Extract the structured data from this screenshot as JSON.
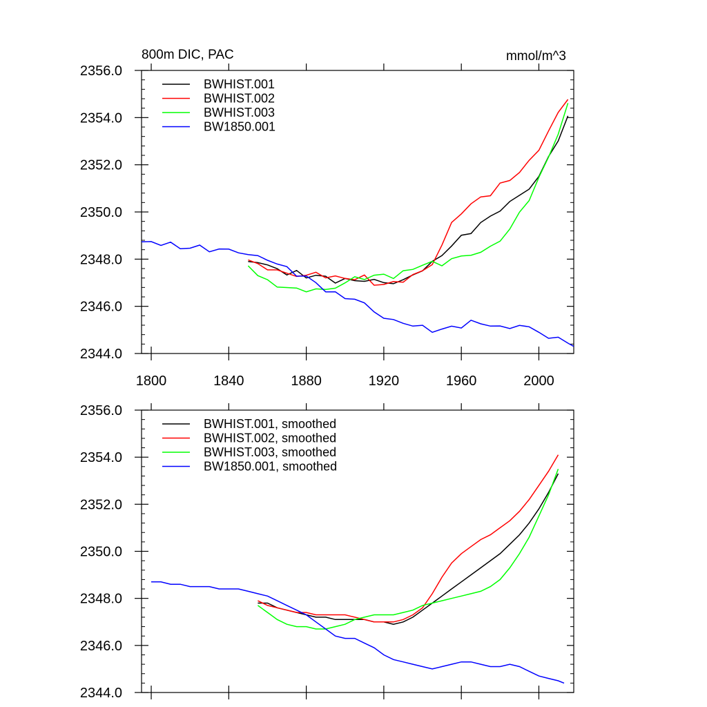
{
  "figure": {
    "title_left": "800m DIC, PAC",
    "title_right": "mmol/m^3"
  },
  "chart_data": [
    {
      "type": "line",
      "smoothed": false,
      "xlim": [
        1795,
        2018
      ],
      "ylim": [
        2344.0,
        2356.0
      ],
      "xticks": [
        1800,
        1840,
        1880,
        1920,
        1960,
        2000
      ],
      "yticks": [
        2344.0,
        2346.0,
        2348.0,
        2350.0,
        2352.0,
        2354.0,
        2356.0
      ],
      "ytick_labels": [
        "2344.0",
        "2346.0",
        "2348.0",
        "2350.0",
        "2352.0",
        "2354.0",
        "2356.0"
      ],
      "xtick_labels": [
        "1800",
        "1840",
        "1880",
        "1920",
        "1960",
        "2000"
      ],
      "legend_position": "top-left",
      "series": [
        {
          "name": "BWHIST.001",
          "color": "#000000",
          "x": [
            1850,
            1855,
            1860,
            1865,
            1870,
            1875,
            1880,
            1885,
            1890,
            1895,
            1900,
            1905,
            1910,
            1915,
            1920,
            1925,
            1930,
            1935,
            1940,
            1945,
            1950,
            1955,
            1960,
            1965,
            1970,
            1975,
            1980,
            1985,
            1990,
            1995,
            2000,
            2005,
            2010,
            2015
          ],
          "y": [
            2347.9,
            2347.9,
            2347.7,
            2347.6,
            2347.4,
            2347.4,
            2347.3,
            2347.3,
            2347.2,
            2347.1,
            2347.1,
            2347.1,
            2347.1,
            2347.1,
            2347.0,
            2347.0,
            2347.1,
            2347.3,
            2347.6,
            2347.8,
            2348.2,
            2348.6,
            2348.9,
            2349.2,
            2349.5,
            2349.8,
            2350.1,
            2350.4,
            2350.7,
            2351.0,
            2351.5,
            2352.3,
            2353.1,
            2354.0
          ]
        },
        {
          "name": "BWHIST.002",
          "color": "#ff0000",
          "x": [
            1850,
            1855,
            1860,
            1865,
            1870,
            1875,
            1880,
            1885,
            1890,
            1895,
            1900,
            1905,
            1910,
            1915,
            1920,
            1925,
            1930,
            1935,
            1940,
            1945,
            1950,
            1955,
            1960,
            1965,
            1970,
            1975,
            1980,
            1985,
            1990,
            1995,
            2000,
            2005,
            2010,
            2015
          ],
          "y": [
            2347.9,
            2347.8,
            2347.6,
            2347.5,
            2347.4,
            2347.3,
            2347.3,
            2347.4,
            2347.3,
            2347.2,
            2347.2,
            2347.2,
            2347.2,
            2347.0,
            2346.9,
            2347.0,
            2347.1,
            2347.3,
            2347.5,
            2347.8,
            2348.6,
            2349.5,
            2350.0,
            2350.3,
            2350.6,
            2350.8,
            2351.1,
            2351.4,
            2351.7,
            2352.1,
            2352.7,
            2353.4,
            2354.2,
            2354.8
          ]
        },
        {
          "name": "BWHIST.003",
          "color": "#00ff00",
          "x": [
            1850,
            1855,
            1860,
            1865,
            1870,
            1875,
            1880,
            1885,
            1890,
            1895,
            1900,
            1905,
            1910,
            1915,
            1920,
            1925,
            1930,
            1935,
            1940,
            1945,
            1950,
            1955,
            1960,
            1965,
            1970,
            1975,
            1980,
            1985,
            1990,
            1995,
            2000,
            2005,
            2010,
            2015
          ],
          "y": [
            2347.7,
            2347.4,
            2347.0,
            2346.9,
            2346.8,
            2346.7,
            2346.7,
            2346.7,
            2346.7,
            2346.8,
            2347.0,
            2347.2,
            2347.2,
            2347.3,
            2347.3,
            2347.3,
            2347.4,
            2347.6,
            2347.8,
            2347.8,
            2347.8,
            2348.0,
            2348.1,
            2348.2,
            2348.3,
            2348.5,
            2348.8,
            2349.3,
            2349.9,
            2350.6,
            2351.4,
            2352.3,
            2353.4,
            2354.5
          ]
        },
        {
          "name": "BW1850.001",
          "color": "#0000ff",
          "x": [
            1795,
            1800,
            1805,
            1810,
            1815,
            1820,
            1825,
            1830,
            1835,
            1840,
            1845,
            1850,
            1855,
            1860,
            1865,
            1870,
            1875,
            1880,
            1885,
            1890,
            1895,
            1900,
            1905,
            1910,
            1915,
            1920,
            1925,
            1930,
            1935,
            1940,
            1945,
            1950,
            1955,
            1960,
            1965,
            1970,
            1975,
            1980,
            1985,
            1990,
            1995,
            2000,
            2005,
            2010,
            2015,
            2018
          ],
          "y": [
            2348.7,
            2348.7,
            2348.7,
            2348.6,
            2348.5,
            2348.5,
            2348.5,
            2348.4,
            2348.4,
            2348.4,
            2348.3,
            2348.2,
            2348.1,
            2348.0,
            2347.8,
            2347.6,
            2347.4,
            2347.2,
            2347.0,
            2346.7,
            2346.5,
            2346.4,
            2346.3,
            2346.1,
            2345.8,
            2345.5,
            2345.4,
            2345.3,
            2345.2,
            2345.1,
            2345.0,
            2345.0,
            2345.1,
            2345.2,
            2345.3,
            2345.3,
            2345.2,
            2345.1,
            2345.1,
            2345.2,
            2345.1,
            2344.9,
            2344.7,
            2344.6,
            2344.5,
            2344.3
          ]
        }
      ]
    },
    {
      "type": "line",
      "smoothed": true,
      "xlim": [
        1795,
        2018
      ],
      "ylim": [
        2344.0,
        2356.0
      ],
      "xticks": [
        1800,
        1840,
        1880,
        1920,
        1960,
        2000
      ],
      "yticks": [
        2344.0,
        2346.0,
        2348.0,
        2350.0,
        2352.0,
        2354.0,
        2356.0
      ],
      "ytick_labels": [
        "2344.0",
        "2346.0",
        "2348.0",
        "2350.0",
        "2352.0",
        "2354.0",
        "2356.0"
      ],
      "legend_position": "top-left",
      "series": [
        {
          "name": "BWHIST.001, smoothed",
          "color": "#000000",
          "x": [
            1855,
            1860,
            1865,
            1870,
            1875,
            1880,
            1885,
            1890,
            1895,
            1900,
            1905,
            1910,
            1915,
            1920,
            1925,
            1930,
            1935,
            1940,
            1945,
            1950,
            1955,
            1960,
            1965,
            1970,
            1975,
            1980,
            1985,
            1990,
            1995,
            2000,
            2005,
            2010
          ],
          "y": [
            2347.8,
            2347.8,
            2347.6,
            2347.5,
            2347.4,
            2347.3,
            2347.2,
            2347.2,
            2347.1,
            2347.1,
            2347.1,
            2347.1,
            2347.0,
            2347.0,
            2346.9,
            2347.0,
            2347.2,
            2347.5,
            2347.8,
            2348.1,
            2348.4,
            2348.7,
            2349.0,
            2349.3,
            2349.6,
            2349.9,
            2350.3,
            2350.7,
            2351.2,
            2351.8,
            2352.5,
            2353.3
          ]
        },
        {
          "name": "BWHIST.002, smoothed",
          "color": "#ff0000",
          "x": [
            1855,
            1860,
            1865,
            1870,
            1875,
            1880,
            1885,
            1890,
            1895,
            1900,
            1905,
            1910,
            1915,
            1920,
            1925,
            1930,
            1935,
            1940,
            1945,
            1950,
            1955,
            1960,
            1965,
            1970,
            1975,
            1980,
            1985,
            1990,
            1995,
            2000,
            2005,
            2010
          ],
          "y": [
            2347.9,
            2347.7,
            2347.6,
            2347.5,
            2347.4,
            2347.4,
            2347.3,
            2347.3,
            2347.3,
            2347.3,
            2347.2,
            2347.1,
            2347.0,
            2347.0,
            2347.0,
            2347.1,
            2347.3,
            2347.6,
            2348.2,
            2348.9,
            2349.5,
            2349.9,
            2350.2,
            2350.5,
            2350.7,
            2351.0,
            2351.3,
            2351.7,
            2352.2,
            2352.8,
            2353.4,
            2354.1
          ]
        },
        {
          "name": "BWHIST.003, smoothed",
          "color": "#00ff00",
          "x": [
            1855,
            1860,
            1865,
            1870,
            1875,
            1880,
            1885,
            1890,
            1895,
            1900,
            1905,
            1910,
            1915,
            1920,
            1925,
            1930,
            1935,
            1940,
            1945,
            1950,
            1955,
            1960,
            1965,
            1970,
            1975,
            1980,
            1985,
            1990,
            1995,
            2000,
            2005,
            2010
          ],
          "y": [
            2347.7,
            2347.4,
            2347.1,
            2346.9,
            2346.8,
            2346.8,
            2346.7,
            2346.7,
            2346.8,
            2346.9,
            2347.1,
            2347.2,
            2347.3,
            2347.3,
            2347.3,
            2347.4,
            2347.5,
            2347.7,
            2347.8,
            2347.9,
            2348.0,
            2348.1,
            2348.2,
            2348.3,
            2348.5,
            2348.8,
            2349.3,
            2349.9,
            2350.6,
            2351.5,
            2352.4,
            2353.5
          ]
        },
        {
          "name": "BW1850.001, smoothed",
          "color": "#0000ff",
          "x": [
            1800,
            1805,
            1810,
            1815,
            1820,
            1825,
            1830,
            1835,
            1840,
            1845,
            1850,
            1855,
            1860,
            1865,
            1870,
            1875,
            1880,
            1885,
            1890,
            1895,
            1900,
            1905,
            1910,
            1915,
            1920,
            1925,
            1930,
            1935,
            1940,
            1945,
            1950,
            1955,
            1960,
            1965,
            1970,
            1975,
            1980,
            1985,
            1990,
            1995,
            2000,
            2005,
            2010,
            2013
          ],
          "y": [
            2348.7,
            2348.7,
            2348.6,
            2348.6,
            2348.5,
            2348.5,
            2348.5,
            2348.4,
            2348.4,
            2348.4,
            2348.3,
            2348.2,
            2348.1,
            2347.9,
            2347.7,
            2347.5,
            2347.3,
            2347.0,
            2346.7,
            2346.4,
            2346.3,
            2346.3,
            2346.1,
            2345.9,
            2345.6,
            2345.4,
            2345.3,
            2345.2,
            2345.1,
            2345.0,
            2345.1,
            2345.2,
            2345.3,
            2345.3,
            2345.2,
            2345.1,
            2345.1,
            2345.2,
            2345.1,
            2344.9,
            2344.7,
            2344.6,
            2344.5,
            2344.4
          ]
        }
      ]
    }
  ]
}
